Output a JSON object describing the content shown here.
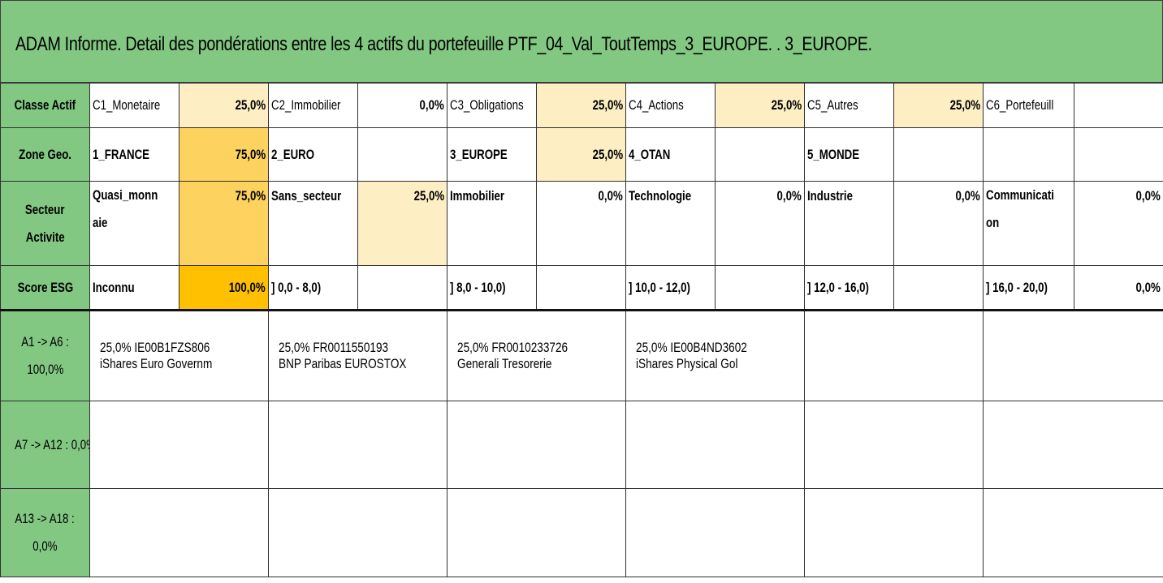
{
  "title": "ADAM Informe. Detail des pondérations entre les 4 actifs du portefeuille PTF_04_Val_ToutTemps_3_EUROPE. . 3_EUROPE.",
  "colors": {
    "header_green": "#82c882",
    "light": "#fdeec4",
    "mid": "#fed25e",
    "strong": "#fec000"
  },
  "classe_actif": {
    "label": "Classe Actif",
    "items": [
      {
        "name": "C1_Monetaire",
        "pct": "25,0%"
      },
      {
        "name": "C2_Immobilier",
        "pct": "0,0%"
      },
      {
        "name": "C3_Obligations",
        "pct": "25,0%"
      },
      {
        "name": "C4_Actions",
        "pct": "25,0%"
      },
      {
        "name": "C5_Autres",
        "pct": "25,0%"
      },
      {
        "name": "C6_Portefeuill",
        "pct": ""
      }
    ]
  },
  "zone_geo": {
    "label": "Zone Geo.",
    "items": [
      {
        "name": "1_FRANCE",
        "pct": "75,0%"
      },
      {
        "name": "2_EURO",
        "pct": ""
      },
      {
        "name": "3_EUROPE",
        "pct": "25,0%"
      },
      {
        "name": "4_OTAN",
        "pct": ""
      },
      {
        "name": "5_MONDE",
        "pct": ""
      },
      {
        "name": "",
        "pct": ""
      }
    ]
  },
  "secteur": {
    "label_line1": "Secteur",
    "label_line2": "Activite",
    "items": [
      {
        "name1": "Quasi_monn",
        "name2": "aie",
        "pct": "75,0%"
      },
      {
        "name1": "Sans_secteur",
        "name2": "",
        "pct": "25,0%"
      },
      {
        "name1": "Immobilier",
        "name2": "",
        "pct": "0,0%"
      },
      {
        "name1": "Technologie",
        "name2": "",
        "pct": "0,0%"
      },
      {
        "name1": "Industrie",
        "name2": "",
        "pct": "0,0%"
      },
      {
        "name1": "Communicati",
        "name2": "on",
        "pct": "0,0%"
      }
    ]
  },
  "esg": {
    "label": "Score ESG",
    "items": [
      {
        "name": "Inconnu",
        "pct": "100,0%"
      },
      {
        "name": "] 0,0 - 8,0)",
        "pct": ""
      },
      {
        "name": "] 8,0 - 10,0)",
        "pct": ""
      },
      {
        "name": "] 10,0 - 12,0)",
        "pct": ""
      },
      {
        "name": "] 12,0 - 16,0)",
        "pct": ""
      },
      {
        "name": "] 16,0 - 20,0)",
        "pct": "0,0%"
      }
    ]
  },
  "asset_rows": [
    {
      "label_line1": "A1 -> A6 :",
      "label_line2": "100,0%",
      "assets": [
        {
          "line1": "25,0% IE00B1FZS806",
          "line2": "iShares Euro Governm"
        },
        {
          "line1": "25,0% FR0011550193",
          "line2": "BNP Paribas EUROSTOX"
        },
        {
          "line1": "25,0% FR0010233726",
          "line2": "Generali Tresorerie"
        },
        {
          "line1": "25,0% IE00B4ND3602",
          "line2": "iShares Physical Gol"
        },
        {
          "line1": "",
          "line2": ""
        },
        {
          "line1": "",
          "line2": ""
        }
      ]
    },
    {
      "label_line1": "A7 -> A12 : 0,0%",
      "label_line2": "",
      "assets": []
    },
    {
      "label_line1": "A13 -> A18 :",
      "label_line2": "0,0%",
      "assets": []
    }
  ]
}
